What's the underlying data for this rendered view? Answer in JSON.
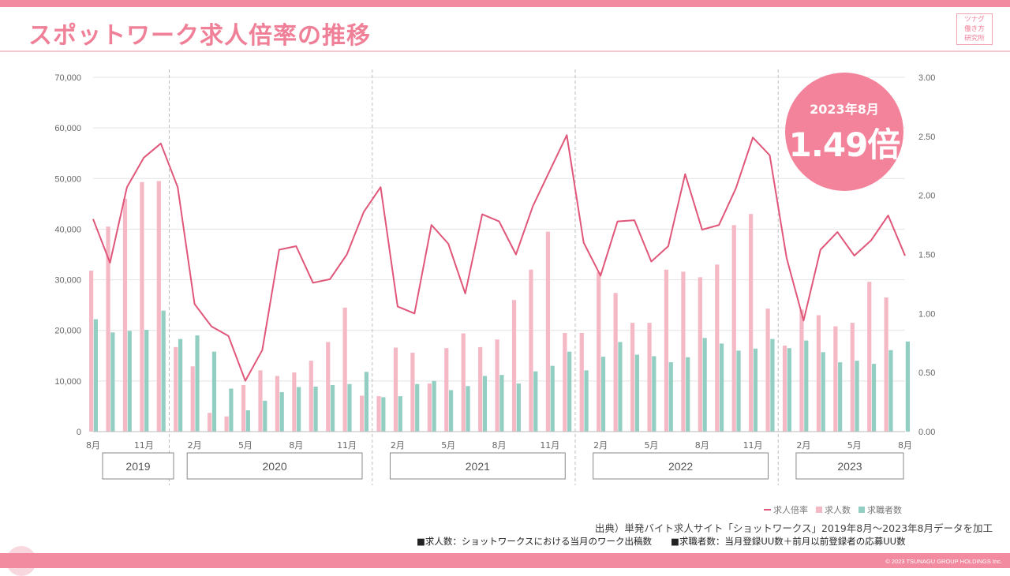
{
  "title": "スポットワーク求人倍率の推移",
  "logo": [
    "ツナグ",
    "働き方",
    "研究所"
  ],
  "badge": {
    "date": "2023年8月",
    "value": "1.49倍"
  },
  "legend": [
    "求人倍率",
    "求人数",
    "求職者数"
  ],
  "source": "出典）単発バイト求人サイト「ショットワークス」2019年8月～2023年8月データを加工",
  "notes": [
    "■求人数：ショットワークスにおける当月のワーク出稿数",
    "■求職者数：当月登録UU数＋前月以前登録者の応募UU数"
  ],
  "copyright": "© 2023 TSUNAGU GROUP HOLDINGS Inc.",
  "colors": {
    "accent": "#f07f98",
    "line": "#e0577a",
    "job_bar": "#f5b8c5",
    "seeker_bar": "#93cec2"
  },
  "chart_data": {
    "type": "bar",
    "months": [
      "2019-08",
      "2019-09",
      "2019-10",
      "2019-11",
      "2019-12",
      "2020-01",
      "2020-02",
      "2020-03",
      "2020-04",
      "2020-05",
      "2020-06",
      "2020-07",
      "2020-08",
      "2020-09",
      "2020-10",
      "2020-11",
      "2020-12",
      "2021-01",
      "2021-02",
      "2021-03",
      "2021-04",
      "2021-05",
      "2021-06",
      "2021-07",
      "2021-08",
      "2021-09",
      "2021-10",
      "2021-11",
      "2021-12",
      "2022-01",
      "2022-02",
      "2022-03",
      "2022-04",
      "2022-05",
      "2022-06",
      "2022-07",
      "2022-08",
      "2022-09",
      "2022-10",
      "2022-11",
      "2022-12",
      "2023-01",
      "2023-02",
      "2023-03",
      "2023-04",
      "2023-05",
      "2023-06",
      "2023-07",
      "2023-08"
    ],
    "tick_labels": [
      {
        "i": 0,
        "label": "8月"
      },
      {
        "i": 3,
        "label": "11月"
      },
      {
        "i": 6,
        "label": "2月"
      },
      {
        "i": 9,
        "label": "5月"
      },
      {
        "i": 12,
        "label": "8月"
      },
      {
        "i": 15,
        "label": "11月"
      },
      {
        "i": 18,
        "label": "2月"
      },
      {
        "i": 21,
        "label": "5月"
      },
      {
        "i": 24,
        "label": "8月"
      },
      {
        "i": 27,
        "label": "11月"
      },
      {
        "i": 30,
        "label": "2月"
      },
      {
        "i": 33,
        "label": "5月"
      },
      {
        "i": 36,
        "label": "8月"
      },
      {
        "i": 39,
        "label": "11月"
      },
      {
        "i": 42,
        "label": "2月"
      },
      {
        "i": 45,
        "label": "5月"
      },
      {
        "i": 48,
        "label": "8月"
      }
    ],
    "year_groups": [
      {
        "label": "2019",
        "start": 0,
        "end": 4
      },
      {
        "label": "2020",
        "start": 5,
        "end": 16
      },
      {
        "label": "2021",
        "start": 17,
        "end": 28
      },
      {
        "label": "2022",
        "start": 29,
        "end": 40
      },
      {
        "label": "2023",
        "start": 41,
        "end": 48
      }
    ],
    "series": [
      {
        "name": "求人数",
        "type": "bar",
        "axis": "left",
        "values": [
          31800,
          40500,
          46000,
          49300,
          49500,
          16700,
          12900,
          3700,
          3000,
          9200,
          12100,
          11000,
          11700,
          14000,
          17700,
          24500,
          7100,
          7000,
          16600,
          15600,
          9500,
          16500,
          19400,
          16700,
          18200,
          26000,
          32000,
          39500,
          19500,
          19500,
          31500,
          27400,
          21500,
          21500,
          32000,
          31600,
          30500,
          33000,
          40800,
          43000,
          24300,
          17000,
          24100,
          23000,
          20800,
          21500,
          29600,
          26500,
          null
        ]
      },
      {
        "name": "求職者数",
        "type": "bar",
        "axis": "left",
        "values": [
          22200,
          19600,
          19900,
          20100,
          23900,
          18300,
          19000,
          15800,
          8500,
          4200,
          6100,
          7800,
          8800,
          8900,
          9200,
          9400,
          11800,
          6800,
          7000,
          9400,
          10000,
          8200,
          9000,
          11000,
          11200,
          9500,
          11900,
          13000,
          15800,
          12100,
          14800,
          17700,
          15200,
          14900,
          13700,
          14700,
          18500,
          17400,
          16000,
          16400,
          18300,
          16500,
          18000,
          15700,
          13700,
          14000,
          13400,
          16100,
          17800
        ]
      },
      {
        "name": "求人倍率",
        "type": "line",
        "axis": "right",
        "values": [
          1.8,
          1.43,
          2.07,
          2.32,
          2.44,
          2.07,
          1.08,
          0.89,
          0.81,
          0.43,
          0.69,
          1.54,
          1.57,
          1.26,
          1.29,
          1.5,
          1.86,
          2.07,
          1.06,
          1.0,
          1.75,
          1.59,
          1.17,
          1.84,
          1.78,
          1.5,
          1.91,
          2.21,
          2.51,
          1.6,
          1.32,
          1.78,
          1.79,
          1.44,
          1.57,
          2.18,
          1.71,
          1.75,
          2.06,
          2.49,
          2.34,
          1.47,
          0.94,
          1.54,
          1.69,
          1.49,
          1.62,
          1.83,
          1.49
        ]
      }
    ],
    "y_left": {
      "min": 0,
      "max": 70000,
      "ticks": [
        "0",
        "10,000",
        "20,000",
        "30,000",
        "40,000",
        "50,000",
        "60,000",
        "70,000"
      ]
    },
    "y_right": {
      "min": 0,
      "max": 3,
      "ticks": [
        "0.00",
        "0.50",
        "1.00",
        "1.50",
        "2.00",
        "2.50",
        "3.00"
      ]
    },
    "grid": true,
    "legend_position": "bottom-right"
  }
}
